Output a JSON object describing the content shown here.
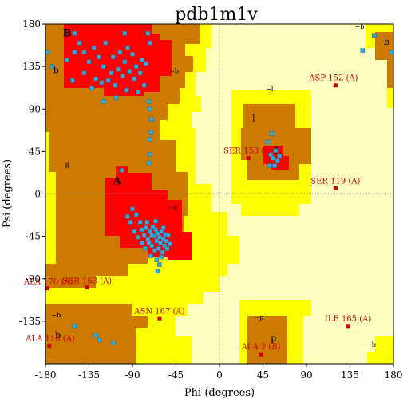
{
  "chart_data": {
    "type": "scatter",
    "title": "pdb1m1v",
    "xlabel": "Phi (degrees)",
    "ylabel": "Psi (degrees)",
    "xlim": [
      -180,
      180
    ],
    "ylim": [
      -180,
      180
    ],
    "xticks": [
      -180,
      -135,
      -90,
      -45,
      0,
      45,
      90,
      135,
      180
    ],
    "yticks": [
      -135,
      -90,
      -45,
      0,
      45,
      90,
      135,
      180
    ],
    "grid": false,
    "zero_lines": true,
    "colors": {
      "core": "#ff0000",
      "allowed": "#cc7a00",
      "generous": "#ffff00",
      "outside": "#ffffc0",
      "point": "#33aadd",
      "flagged": "#cc0000"
    },
    "region_labels": [
      {
        "text": "B",
        "phi": -162,
        "psi": 167,
        "size": "big"
      },
      {
        "text": "b",
        "phi": -172,
        "psi": 128,
        "size": "small"
      },
      {
        "text": "A",
        "phi": -110,
        "psi": 10,
        "size": "big"
      },
      {
        "text": "a",
        "phi": -160,
        "psi": 28,
        "size": "small"
      },
      {
        "text": "~b",
        "phi": -52,
        "psi": 128,
        "size": "tiny"
      },
      {
        "text": "~a",
        "phi": -53,
        "psi": -17,
        "size": "tiny"
      },
      {
        "text": "~l",
        "phi": 48,
        "psi": 109,
        "size": "tiny"
      },
      {
        "text": "l",
        "phi": 34,
        "psi": 77,
        "size": "small"
      },
      {
        "text": "L",
        "phi": 56,
        "psi": 42,
        "size": "big"
      },
      {
        "text": "~b",
        "phi": 140,
        "psi": 175,
        "size": "tiny"
      },
      {
        "text": "b",
        "phi": 170,
        "psi": 158,
        "size": "small"
      },
      {
        "text": "~b",
        "phi": -174,
        "psi": -131,
        "size": "tiny"
      },
      {
        "text": "b",
        "phi": -170,
        "psi": -153,
        "size": "small"
      },
      {
        "text": "~p",
        "phi": 36,
        "psi": -133,
        "size": "tiny"
      },
      {
        "text": "p",
        "phi": 53,
        "psi": -156,
        "size": "small"
      },
      {
        "text": "~b",
        "phi": 152,
        "psi": -162,
        "size": "tiny"
      }
    ],
    "annotations": [
      {
        "text": "ASP 152 (A)",
        "phi": 118,
        "psi": 115,
        "anchor": "middle",
        "dy": -6
      },
      {
        "text": "SER 158 (A)",
        "phi": 30,
        "psi": 38,
        "anchor": "middle",
        "dy": -6
      },
      {
        "text": "SER 119 (A)",
        "phi": 120,
        "psi": 6,
        "anchor": "middle",
        "dy": -6
      },
      {
        "text": "ALA 170 (A)",
        "phi": -177,
        "psi": -100,
        "anchor": "middle",
        "dy": -5
      },
      {
        "text": "SER 163 (A)",
        "phi": -137,
        "psi": -99,
        "anchor": "middle",
        "dy": -5
      },
      {
        "text": "ASN 167 (A)",
        "phi": -62,
        "psi": -132,
        "anchor": "middle",
        "dy": -6
      },
      {
        "text": "ALA 110 (A)",
        "phi": -175,
        "psi": -161,
        "anchor": "middle",
        "dy": -6
      },
      {
        "text": "ALA 2 (B)",
        "phi": 43,
        "psi": -170,
        "anchor": "middle",
        "dy": -6
      },
      {
        "text": "ILE 165 (A)",
        "phi": 133,
        "psi": -140,
        "anchor": "middle",
        "dy": -6
      }
    ],
    "flagged_points": [
      {
        "x": 120,
        "y": 115
      },
      {
        "x": 30,
        "y": 38
      },
      {
        "x": 120,
        "y": 6
      },
      {
        "x": -178,
        "y": -100
      },
      {
        "x": -137,
        "y": -99
      },
      {
        "x": -62,
        "y": -132
      },
      {
        "x": -176,
        "y": -161
      },
      {
        "x": 43,
        "y": -170
      },
      {
        "x": 133,
        "y": -140
      }
    ],
    "points": [
      {
        "x": -173,
        "y": 135
      },
      {
        "x": -158,
        "y": 142
      },
      {
        "x": -150,
        "y": 150
      },
      {
        "x": -145,
        "y": 160
      },
      {
        "x": -140,
        "y": 150
      },
      {
        "x": -135,
        "y": 140
      },
      {
        "x": -130,
        "y": 155
      },
      {
        "x": -125,
        "y": 145
      },
      {
        "x": -120,
        "y": 135
      },
      {
        "x": -118,
        "y": 160
      },
      {
        "x": -115,
        "y": 120
      },
      {
        "x": -112,
        "y": 128
      },
      {
        "x": -110,
        "y": 145
      },
      {
        "x": -108,
        "y": 115
      },
      {
        "x": -105,
        "y": 132
      },
      {
        "x": -103,
        "y": 150
      },
      {
        "x": -100,
        "y": 125
      },
      {
        "x": -98,
        "y": 140
      },
      {
        "x": -96,
        "y": 110
      },
      {
        "x": -93,
        "y": 130
      },
      {
        "x": -90,
        "y": 148
      },
      {
        "x": -88,
        "y": 122
      },
      {
        "x": -86,
        "y": 135
      },
      {
        "x": -84,
        "y": 108
      },
      {
        "x": -82,
        "y": 128
      },
      {
        "x": -80,
        "y": 142
      },
      {
        "x": -78,
        "y": 115
      },
      {
        "x": -76,
        "y": 138
      },
      {
        "x": -132,
        "y": 112
      },
      {
        "x": -128,
        "y": 122
      },
      {
        "x": -140,
        "y": 128
      },
      {
        "x": -152,
        "y": 120
      },
      {
        "x": -95,
        "y": 155
      },
      {
        "x": -107,
        "y": 102
      },
      {
        "x": -122,
        "y": 118
      },
      {
        "x": -120,
        "y": 98
      },
      {
        "x": -150,
        "y": 170
      },
      {
        "x": -74,
        "y": 170
      },
      {
        "x": -98,
        "y": 170
      },
      {
        "x": -72,
        "y": 160
      },
      {
        "x": -73,
        "y": 98
      },
      {
        "x": -72,
        "y": 90
      },
      {
        "x": -70,
        "y": 79
      },
      {
        "x": -71,
        "y": 65
      },
      {
        "x": -72,
        "y": 58
      },
      {
        "x": -72,
        "y": 42
      },
      {
        "x": -73,
        "y": 33
      },
      {
        "x": -101,
        "y": 25
      },
      {
        "x": -90,
        "y": -16
      },
      {
        "x": -86,
        "y": -22
      },
      {
        "x": -82,
        "y": -30
      },
      {
        "x": -80,
        "y": -38
      },
      {
        "x": -78,
        "y": -44
      },
      {
        "x": -76,
        "y": -36
      },
      {
        "x": -74,
        "y": -48
      },
      {
        "x": -72,
        "y": -40
      },
      {
        "x": -70,
        "y": -55
      },
      {
        "x": -68,
        "y": -45
      },
      {
        "x": -66,
        "y": -38
      },
      {
        "x": -65,
        "y": -50
      },
      {
        "x": -64,
        "y": -42
      },
      {
        "x": -63,
        "y": -58
      },
      {
        "x": -62,
        "y": -46
      },
      {
        "x": -61,
        "y": -52
      },
      {
        "x": -60,
        "y": -40
      },
      {
        "x": -59,
        "y": -62
      },
      {
        "x": -58,
        "y": -48
      },
      {
        "x": -57,
        "y": -55
      },
      {
        "x": -56,
        "y": -43
      },
      {
        "x": -55,
        "y": -50
      },
      {
        "x": -54,
        "y": -58
      },
      {
        "x": -67,
        "y": -60
      },
      {
        "x": -69,
        "y": -35
      },
      {
        "x": -73,
        "y": -52
      },
      {
        "x": -71,
        "y": -66
      },
      {
        "x": -65,
        "y": -70
      },
      {
        "x": -62,
        "y": -75
      },
      {
        "x": -60,
        "y": -67
      },
      {
        "x": -58,
        "y": -36
      },
      {
        "x": -66,
        "y": -29
      },
      {
        "x": -84,
        "y": -46
      },
      {
        "x": -88,
        "y": -40
      },
      {
        "x": -92,
        "y": -30
      },
      {
        "x": -95,
        "y": -24
      },
      {
        "x": -77,
        "y": -58
      },
      {
        "x": -53,
        "y": -44
      },
      {
        "x": -51,
        "y": -53
      },
      {
        "x": -64,
        "y": -82
      },
      {
        "x": -80,
        "y": -52
      },
      {
        "x": -70,
        "y": -44
      },
      {
        "x": -75,
        "y": -30
      },
      {
        "x": 53,
        "y": 42
      },
      {
        "x": 55,
        "y": 38
      },
      {
        "x": 60,
        "y": 35
      },
      {
        "x": 57,
        "y": 30
      },
      {
        "x": 62,
        "y": 40
      },
      {
        "x": 52,
        "y": 30
      },
      {
        "x": 58,
        "y": 46
      },
      {
        "x": 50,
        "y": 55
      },
      {
        "x": 54,
        "y": 64
      },
      {
        "x": 148,
        "y": 152
      },
      {
        "x": 160,
        "y": 168
      },
      {
        "x": 178,
        "y": 150
      },
      {
        "x": -178,
        "y": 150
      },
      {
        "x": -150,
        "y": -140
      },
      {
        "x": -128,
        "y": -150
      },
      {
        "x": -124,
        "y": -155
      },
      {
        "x": -110,
        "y": -158
      }
    ]
  }
}
